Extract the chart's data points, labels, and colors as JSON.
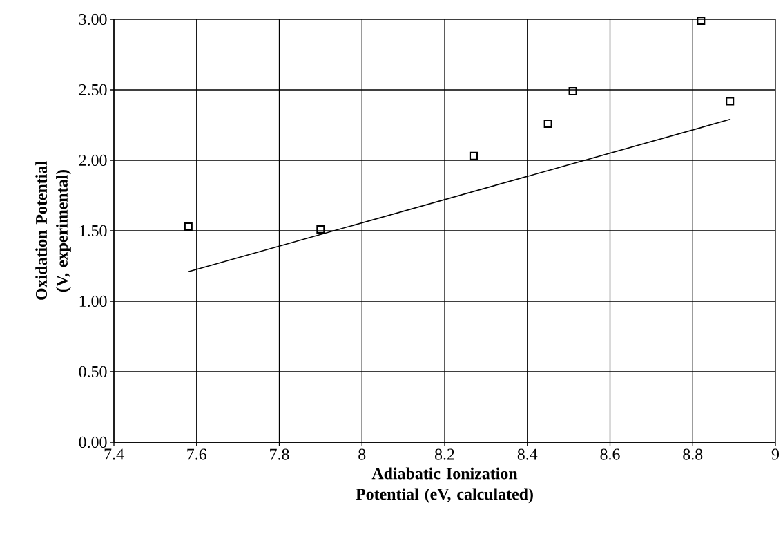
{
  "chart_data": {
    "type": "scatter",
    "xlabel": "Adiabatic Ionization Potential (eV, calculated)",
    "ylabel": "Oxidation Potential (V, experimental)",
    "series": [
      {
        "color": "#000000",
        "marker": "square",
        "x": [
          7.58,
          7.9,
          8.27,
          8.45,
          8.51,
          8.82,
          8.89
        ],
        "values": [
          1.53,
          1.51,
          2.03,
          2.26,
          2.49,
          2.99,
          2.42
        ]
      },
      {
        "type": "line",
        "color": "#000000",
        "line_style": "solid",
        "marker": "none",
        "x": [
          7.58,
          8.89
        ],
        "values": [
          1.21,
          2.29
        ]
      }
    ],
    "xlim": [
      7.4,
      9
    ],
    "ylim": [
      0,
      3
    ],
    "xticks": [
      7.4,
      7.6,
      7.8,
      8,
      8.2,
      8.4,
      8.6,
      8.8,
      9
    ],
    "yticks": [
      {
        "value": 0,
        "label": "0.00"
      },
      {
        "value": 0.5,
        "label": "0.50"
      },
      {
        "value": 1,
        "label": "1.00"
      },
      {
        "value": 1.5,
        "label": "1.50"
      },
      {
        "value": 2,
        "label": "2.00"
      },
      {
        "value": 2.5,
        "label": "2.50"
      },
      {
        "value": 3,
        "label": "3.00"
      }
    ],
    "grid": true
  }
}
